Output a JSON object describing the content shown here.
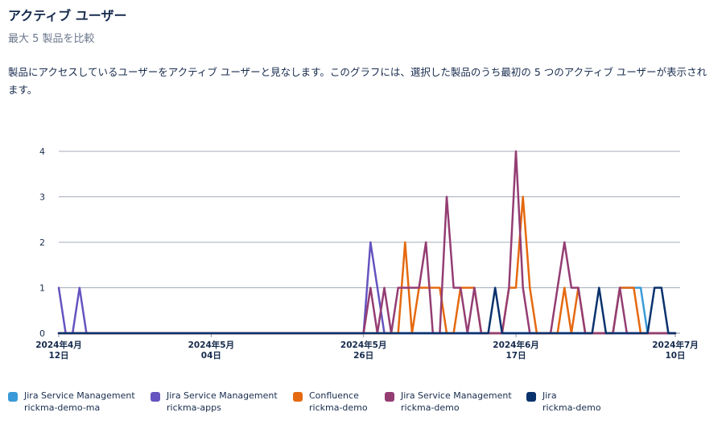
{
  "header": {
    "title": "アクティブ ユーザー",
    "subtitle": "最大 5 製品を比較",
    "description": "製品にアクセスしているユーザーをアクティブ ユーザーと見なします。このグラフには、選択した製品のうち最初の 5 つのアクティブ ユーザーが表示されます。"
  },
  "chart_data": {
    "type": "line",
    "title": "",
    "xlabel": "",
    "ylabel": "",
    "ylim": [
      0,
      4
    ],
    "grid": true,
    "legend_position": "bottom",
    "x_start": "2024-04-12",
    "x_end": "2024-07-10",
    "y_ticks": [
      "0",
      "1",
      "2",
      "3",
      "4"
    ],
    "x_ticks": [
      {
        "date": "2024-04-12",
        "line1": "2024年4月",
        "line2": "12日"
      },
      {
        "date": "2024-05-04",
        "line1": "2024年5月",
        "line2": "04日"
      },
      {
        "date": "2024-05-26",
        "line1": "2024年5月",
        "line2": "26日"
      },
      {
        "date": "2024-06-17",
        "line1": "2024年6月",
        "line2": "17日"
      },
      {
        "date": "2024-07-10",
        "line1": "2024年7月",
        "line2": "10日"
      }
    ],
    "series": [
      {
        "name": "Jira Service Management",
        "site": "rickma-demo-ma",
        "color": "#3a9ad9",
        "points": [
          [
            "2024-04-12",
            0
          ],
          [
            "2024-07-01",
            0
          ],
          [
            "2024-07-02",
            1
          ],
          [
            "2024-07-05",
            1
          ],
          [
            "2024-07-06",
            0
          ],
          [
            "2024-07-10",
            0
          ]
        ]
      },
      {
        "name": "Jira Service Management",
        "site": "rickma-apps",
        "color": "#6554c0",
        "points": [
          [
            "2024-04-12",
            1
          ],
          [
            "2024-04-13",
            0
          ],
          [
            "2024-04-14",
            0
          ],
          [
            "2024-04-15",
            1
          ],
          [
            "2024-04-16",
            0
          ],
          [
            "2024-05-26",
            0
          ],
          [
            "2024-05-27",
            2
          ],
          [
            "2024-05-28",
            1
          ],
          [
            "2024-05-29",
            0
          ],
          [
            "2024-07-10",
            0
          ]
        ]
      },
      {
        "name": "Confluence",
        "site": "rickma-demo",
        "color": "#e56910",
        "points": [
          [
            "2024-04-12",
            0
          ],
          [
            "2024-05-31",
            0
          ],
          [
            "2024-06-01",
            2
          ],
          [
            "2024-06-02",
            0
          ],
          [
            "2024-06-03",
            1
          ],
          [
            "2024-06-06",
            1
          ],
          [
            "2024-06-07",
            0
          ],
          [
            "2024-06-08",
            0
          ],
          [
            "2024-06-09",
            1
          ],
          [
            "2024-06-11",
            1
          ],
          [
            "2024-06-12",
            0
          ],
          [
            "2024-06-15",
            0
          ],
          [
            "2024-06-16",
            1
          ],
          [
            "2024-06-17",
            1
          ],
          [
            "2024-06-18",
            3
          ],
          [
            "2024-06-19",
            1
          ],
          [
            "2024-06-20",
            0
          ],
          [
            "2024-06-23",
            0
          ],
          [
            "2024-06-24",
            1
          ],
          [
            "2024-06-25",
            0
          ],
          [
            "2024-06-26",
            1
          ],
          [
            "2024-06-27",
            0
          ],
          [
            "2024-07-01",
            0
          ],
          [
            "2024-07-02",
            1
          ],
          [
            "2024-07-04",
            1
          ],
          [
            "2024-07-05",
            0
          ],
          [
            "2024-07-10",
            0
          ]
        ]
      },
      {
        "name": "Jira Service Management",
        "site": "rickma-demo",
        "color": "#943d73",
        "points": [
          [
            "2024-04-12",
            0
          ],
          [
            "2024-05-26",
            0
          ],
          [
            "2024-05-27",
            1
          ],
          [
            "2024-05-28",
            0
          ],
          [
            "2024-05-29",
            1
          ],
          [
            "2024-05-30",
            0
          ],
          [
            "2024-05-31",
            1
          ],
          [
            "2024-06-03",
            1
          ],
          [
            "2024-06-04",
            2
          ],
          [
            "2024-06-05",
            0
          ],
          [
            "2024-06-06",
            0
          ],
          [
            "2024-06-07",
            3
          ],
          [
            "2024-06-08",
            1
          ],
          [
            "2024-06-09",
            1
          ],
          [
            "2024-06-10",
            0
          ],
          [
            "2024-06-11",
            1
          ],
          [
            "2024-06-12",
            0
          ],
          [
            "2024-06-15",
            0
          ],
          [
            "2024-06-16",
            1
          ],
          [
            "2024-06-17",
            4
          ],
          [
            "2024-06-18",
            1
          ],
          [
            "2024-06-19",
            0
          ],
          [
            "2024-06-22",
            0
          ],
          [
            "2024-06-23",
            1
          ],
          [
            "2024-06-24",
            2
          ],
          [
            "2024-06-25",
            1
          ],
          [
            "2024-06-26",
            1
          ],
          [
            "2024-06-27",
            0
          ],
          [
            "2024-07-01",
            0
          ],
          [
            "2024-07-02",
            1
          ],
          [
            "2024-07-03",
            0
          ],
          [
            "2024-07-10",
            0
          ]
        ]
      },
      {
        "name": "Jira",
        "site": "rickma-demo",
        "color": "#09326c",
        "points": [
          [
            "2024-04-12",
            0
          ],
          [
            "2024-06-13",
            0
          ],
          [
            "2024-06-14",
            1
          ],
          [
            "2024-06-15",
            0
          ],
          [
            "2024-06-28",
            0
          ],
          [
            "2024-06-29",
            1
          ],
          [
            "2024-06-30",
            0
          ],
          [
            "2024-07-06",
            0
          ],
          [
            "2024-07-07",
            1
          ],
          [
            "2024-07-08",
            1
          ],
          [
            "2024-07-09",
            0
          ],
          [
            "2024-07-10",
            0
          ]
        ]
      }
    ]
  }
}
